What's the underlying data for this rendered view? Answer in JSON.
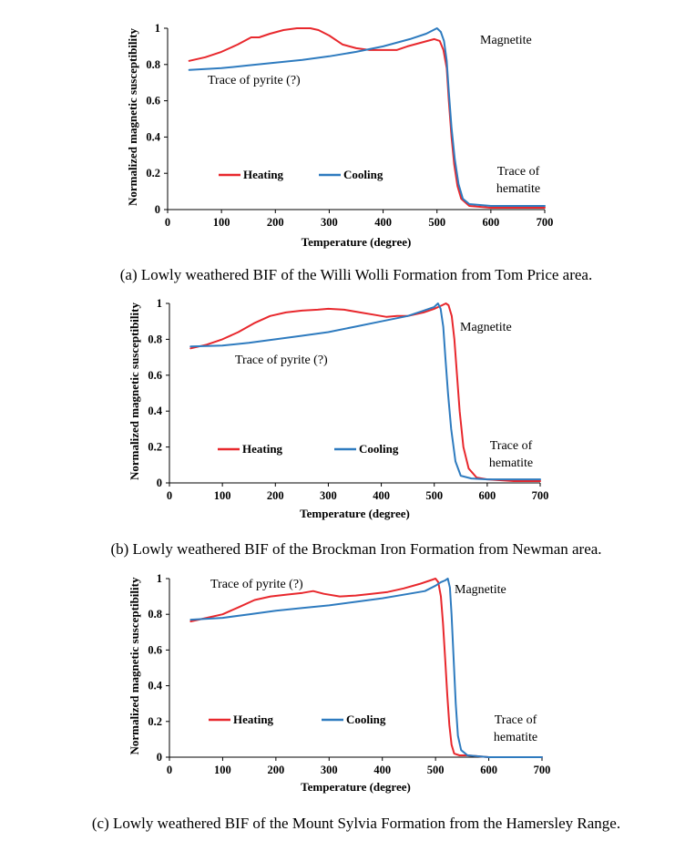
{
  "colors": {
    "heating": "#e8282d",
    "cooling": "#2e7bbf"
  },
  "chart_data": [
    {
      "type": "line",
      "caption": "(a) Lowly weathered BIF of the Willi Wolli Formation from Tom Price area.",
      "xlabel": "Temperature (degree)",
      "ylabel": "Normalized magnetic susceptibility",
      "xlim": [
        0,
        700
      ],
      "ylim": [
        0,
        1
      ],
      "xticks": [
        "0",
        "100",
        "200",
        "300",
        "400",
        "500",
        "600",
        "700"
      ],
      "yticks": [
        "0",
        "0.2",
        "0.4",
        "0.6",
        "0.8",
        "1"
      ],
      "legend": {
        "placement": "lower-left",
        "entries": [
          "Heating",
          "Cooling"
        ]
      },
      "annotations": [
        "Magnetite",
        "Trace of pyrite (?)",
        "Trace of",
        "hematite"
      ],
      "series": [
        {
          "name": "Heating",
          "color": "heating",
          "x": [
            40,
            70,
            100,
            130,
            155,
            170,
            190,
            215,
            240,
            265,
            280,
            300,
            325,
            350,
            375,
            400,
            425,
            445,
            470,
            495,
            505,
            512,
            518,
            522,
            527,
            532,
            538,
            545,
            560,
            600,
            650,
            700
          ],
          "y": [
            0.82,
            0.84,
            0.87,
            0.91,
            0.95,
            0.95,
            0.97,
            0.99,
            1.0,
            1.0,
            0.99,
            0.96,
            0.91,
            0.89,
            0.88,
            0.88,
            0.88,
            0.9,
            0.92,
            0.94,
            0.93,
            0.88,
            0.78,
            0.6,
            0.4,
            0.25,
            0.13,
            0.06,
            0.02,
            0.01,
            0.01,
            0.01
          ]
        },
        {
          "name": "Cooling",
          "color": "cooling",
          "x": [
            40,
            100,
            150,
            200,
            250,
            300,
            350,
            400,
            450,
            480,
            500,
            507,
            513,
            518,
            522,
            527,
            533,
            540,
            548,
            560,
            600,
            650,
            700
          ],
          "y": [
            0.77,
            0.78,
            0.795,
            0.81,
            0.825,
            0.845,
            0.87,
            0.9,
            0.94,
            0.97,
            1.0,
            0.98,
            0.93,
            0.82,
            0.65,
            0.45,
            0.28,
            0.14,
            0.06,
            0.03,
            0.02,
            0.02,
            0.02
          ]
        }
      ]
    },
    {
      "type": "line",
      "caption": "(b) Lowly weathered BIF of the Brockman Iron Formation from Newman area.",
      "xlabel": "Temperature (degree)",
      "ylabel": "Normalized magnetic susceptibility",
      "xlim": [
        0,
        700
      ],
      "ylim": [
        0,
        1
      ],
      "xticks": [
        "0",
        "100",
        "200",
        "300",
        "400",
        "500",
        "600",
        "700"
      ],
      "yticks": [
        "0",
        "0.2",
        "0.4",
        "0.6",
        "0.8",
        "1"
      ],
      "legend": {
        "placement": "lower-left",
        "entries": [
          "Heating",
          "Cooling"
        ]
      },
      "annotations": [
        "Magnetite",
        "Trace of pyrite (?)",
        "Trace of",
        "hematite"
      ],
      "series": [
        {
          "name": "Heating",
          "color": "heating",
          "x": [
            40,
            70,
            100,
            130,
            160,
            190,
            220,
            250,
            280,
            300,
            330,
            360,
            390,
            410,
            430,
            450,
            480,
            500,
            515,
            522,
            527,
            533,
            538,
            543,
            548,
            555,
            565,
            580,
            600,
            650,
            700
          ],
          "y": [
            0.75,
            0.77,
            0.8,
            0.84,
            0.89,
            0.93,
            0.95,
            0.96,
            0.965,
            0.97,
            0.965,
            0.95,
            0.935,
            0.925,
            0.93,
            0.93,
            0.95,
            0.97,
            0.99,
            1.0,
            0.99,
            0.93,
            0.8,
            0.6,
            0.4,
            0.2,
            0.08,
            0.03,
            0.02,
            0.01,
            0.01
          ]
        },
        {
          "name": "Cooling",
          "color": "cooling",
          "x": [
            40,
            100,
            150,
            200,
            250,
            300,
            350,
            400,
            450,
            480,
            500,
            507,
            512,
            517,
            521,
            526,
            532,
            540,
            550,
            570,
            600,
            650,
            700
          ],
          "y": [
            0.76,
            0.765,
            0.78,
            0.8,
            0.82,
            0.84,
            0.87,
            0.9,
            0.93,
            0.96,
            0.98,
            1.0,
            0.97,
            0.87,
            0.7,
            0.5,
            0.3,
            0.12,
            0.04,
            0.025,
            0.02,
            0.02,
            0.02
          ]
        }
      ]
    },
    {
      "type": "line",
      "caption": "(c) Lowly weathered BIF of the Mount Sylvia Formation from the Hamersley Range.",
      "xlabel": "Temperature (degree)",
      "ylabel": "Normalized magnetic susceptibility",
      "xlim": [
        0,
        700
      ],
      "ylim": [
        0,
        1
      ],
      "xticks": [
        "0",
        "100",
        "200",
        "300",
        "400",
        "500",
        "600",
        "700"
      ],
      "yticks": [
        "0",
        "0.2",
        "0.4",
        "0.6",
        "0.8",
        "1"
      ],
      "legend": {
        "placement": "lower-left",
        "entries": [
          "Heating",
          "Cooling"
        ]
      },
      "annotations": [
        "Trace of pyrite (?)",
        "Magnetite",
        "Trace of",
        "hematite"
      ],
      "series": [
        {
          "name": "Heating",
          "color": "heating",
          "x": [
            40,
            70,
            100,
            130,
            160,
            190,
            220,
            250,
            270,
            290,
            320,
            350,
            380,
            410,
            440,
            470,
            490,
            500,
            505,
            510,
            514,
            518,
            522,
            526,
            530,
            535,
            545,
            560,
            600,
            700
          ],
          "y": [
            0.76,
            0.78,
            0.8,
            0.84,
            0.88,
            0.9,
            0.91,
            0.92,
            0.93,
            0.915,
            0.9,
            0.905,
            0.915,
            0.925,
            0.945,
            0.97,
            0.99,
            1.0,
            0.98,
            0.9,
            0.75,
            0.55,
            0.35,
            0.18,
            0.07,
            0.02,
            0.01,
            0.01,
            0.0,
            0.0
          ]
        },
        {
          "name": "Cooling",
          "color": "cooling",
          "x": [
            40,
            100,
            150,
            200,
            250,
            300,
            350,
            400,
            450,
            480,
            500,
            510,
            518,
            523,
            527,
            530,
            534,
            538,
            542,
            548,
            560,
            600,
            700
          ],
          "y": [
            0.77,
            0.78,
            0.8,
            0.82,
            0.835,
            0.85,
            0.87,
            0.89,
            0.915,
            0.93,
            0.96,
            0.98,
            0.99,
            1.0,
            0.95,
            0.8,
            0.55,
            0.3,
            0.12,
            0.04,
            0.01,
            0.0,
            0.0
          ]
        }
      ]
    }
  ]
}
